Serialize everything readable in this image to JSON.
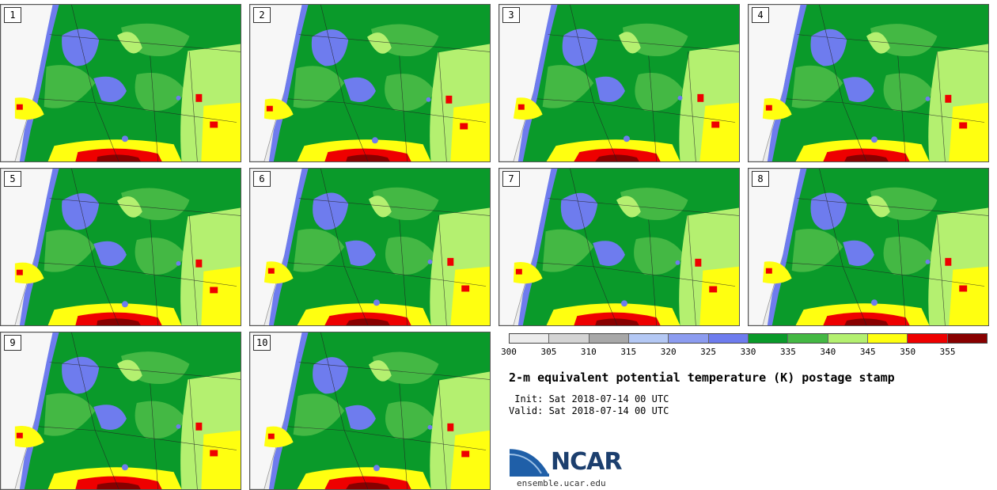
{
  "panels": [
    {
      "label": "1"
    },
    {
      "label": "2"
    },
    {
      "label": "3"
    },
    {
      "label": "4"
    },
    {
      "label": "5"
    },
    {
      "label": "6"
    },
    {
      "label": "7"
    },
    {
      "label": "8"
    },
    {
      "label": "9"
    },
    {
      "label": "10"
    }
  ],
  "colorbar": {
    "bins": [
      {
        "color": "#ececec"
      },
      {
        "color": "#d4d4d4"
      },
      {
        "color": "#a8a8a8"
      },
      {
        "color": "#b4c8f4"
      },
      {
        "color": "#8c9cf0"
      },
      {
        "color": "#6e7cee"
      },
      {
        "color": "#0a9a2a"
      },
      {
        "color": "#44b844"
      },
      {
        "color": "#b4f070"
      },
      {
        "color": "#ffff10"
      },
      {
        "color": "#ee0000"
      },
      {
        "color": "#880000"
      }
    ],
    "tick_labels": [
      "300",
      "305",
      "310",
      "315",
      "320",
      "325",
      "330",
      "335",
      "340",
      "345",
      "350",
      "355"
    ]
  },
  "title": "2-m equivalent potential temperature (K) postage stamp",
  "init": " Init: Sat 2018-07-14 00 UTC",
  "valid": "Valid: Sat 2018-07-14 00 UTC",
  "logo": {
    "text": "NCAR",
    "website": "ensemble.ucar.edu"
  },
  "colors": {
    "land_dark": "#0a9a2a",
    "land_mid": "#44b844",
    "land_light": "#b4f070",
    "cool": "#6e7cee",
    "hot": "#ffff10",
    "hotter": "#ee0000",
    "hottest": "#880000",
    "ocean": "#ececec"
  }
}
